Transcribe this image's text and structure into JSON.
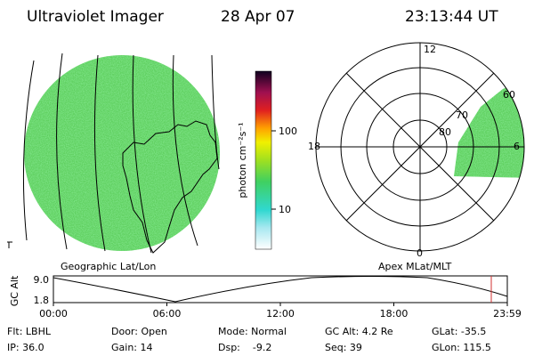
{
  "header": {
    "title": "Ultraviolet Imager",
    "date": "28 Apr 07",
    "time": "23:13:44 UT"
  },
  "colorbar": {
    "label": "photon cm⁻²s⁻¹",
    "ticks": [
      "100",
      "10"
    ]
  },
  "polar": {
    "hour_labels": [
      "12",
      "18",
      "6",
      "0"
    ],
    "lat_labels": [
      "60",
      "70",
      "80"
    ]
  },
  "panel_labels": {
    "left": "Geographic Lat/Lon",
    "right": "Apex MLat/MLT"
  },
  "timeline": {
    "ylabel": "GC Alt",
    "yticks": [
      "9.0",
      "1.8"
    ],
    "xticks": [
      "00:00",
      "06:00",
      "12:00",
      "18:00",
      "23:59"
    ]
  },
  "info": {
    "rows": [
      [
        "Flt: LBHL",
        "Door: Open",
        "Mode: Normal",
        "GC Alt: 4.2 Re",
        "GLat: -35.5"
      ],
      [
        "IP: 36.0",
        "Gain: 14",
        "Dsp:    -9.2",
        "Seq: 39",
        "GLon: 115.5"
      ]
    ]
  }
}
